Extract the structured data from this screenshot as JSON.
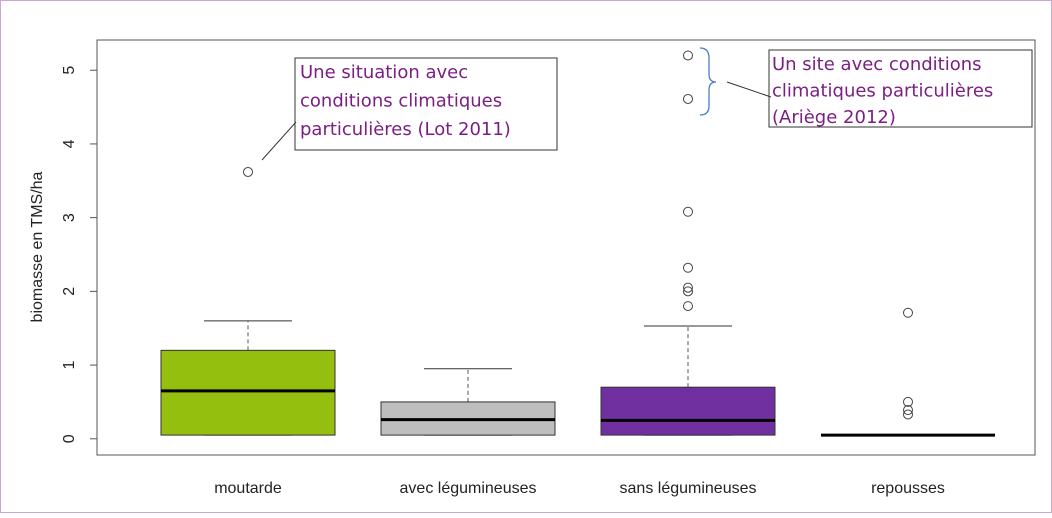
{
  "chart_data": {
    "type": "box",
    "y_label": "biomasse en TMS/ha",
    "categories": [
      "moutarde",
      "avec légumineuses",
      "sans légumineuses",
      "repousses"
    ],
    "colors": [
      "#94bf0f",
      "#bebebe",
      "#7030a0",
      "#ffffff"
    ],
    "boxes": [
      {
        "whisker_low": 0.05,
        "q1": 0.05,
        "median": 0.65,
        "q3": 1.2,
        "whisker_high": 1.6,
        "outliers": [
          3.62
        ]
      },
      {
        "whisker_low": 0.05,
        "q1": 0.05,
        "median": 0.26,
        "q3": 0.5,
        "whisker_high": 0.95,
        "outliers": []
      },
      {
        "whisker_low": 0.05,
        "q1": 0.05,
        "median": 0.25,
        "q3": 0.7,
        "whisker_high": 1.53,
        "outliers": [
          1.8,
          2.0,
          2.05,
          2.32,
          3.08,
          4.61,
          5.2
        ]
      },
      {
        "whisker_low": 0.05,
        "q1": 0.05,
        "median": 0.05,
        "q3": 0.05,
        "whisker_high": 0.05,
        "outliers": [
          0.33,
          0.39,
          0.5,
          1.71
        ]
      }
    ],
    "ylim": [
      -0.22,
      5.41
    ],
    "yticks": [
      0,
      1,
      2,
      3,
      4,
      5
    ],
    "annotations": [
      {
        "lines": [
          "Une situation avec",
          "conditions climatiques",
          "particulières (Lot 2011)"
        ]
      },
      {
        "lines": [
          "Un site avec conditions",
          "climatiques particulières",
          "(Ariège 2012)"
        ]
      }
    ]
  }
}
